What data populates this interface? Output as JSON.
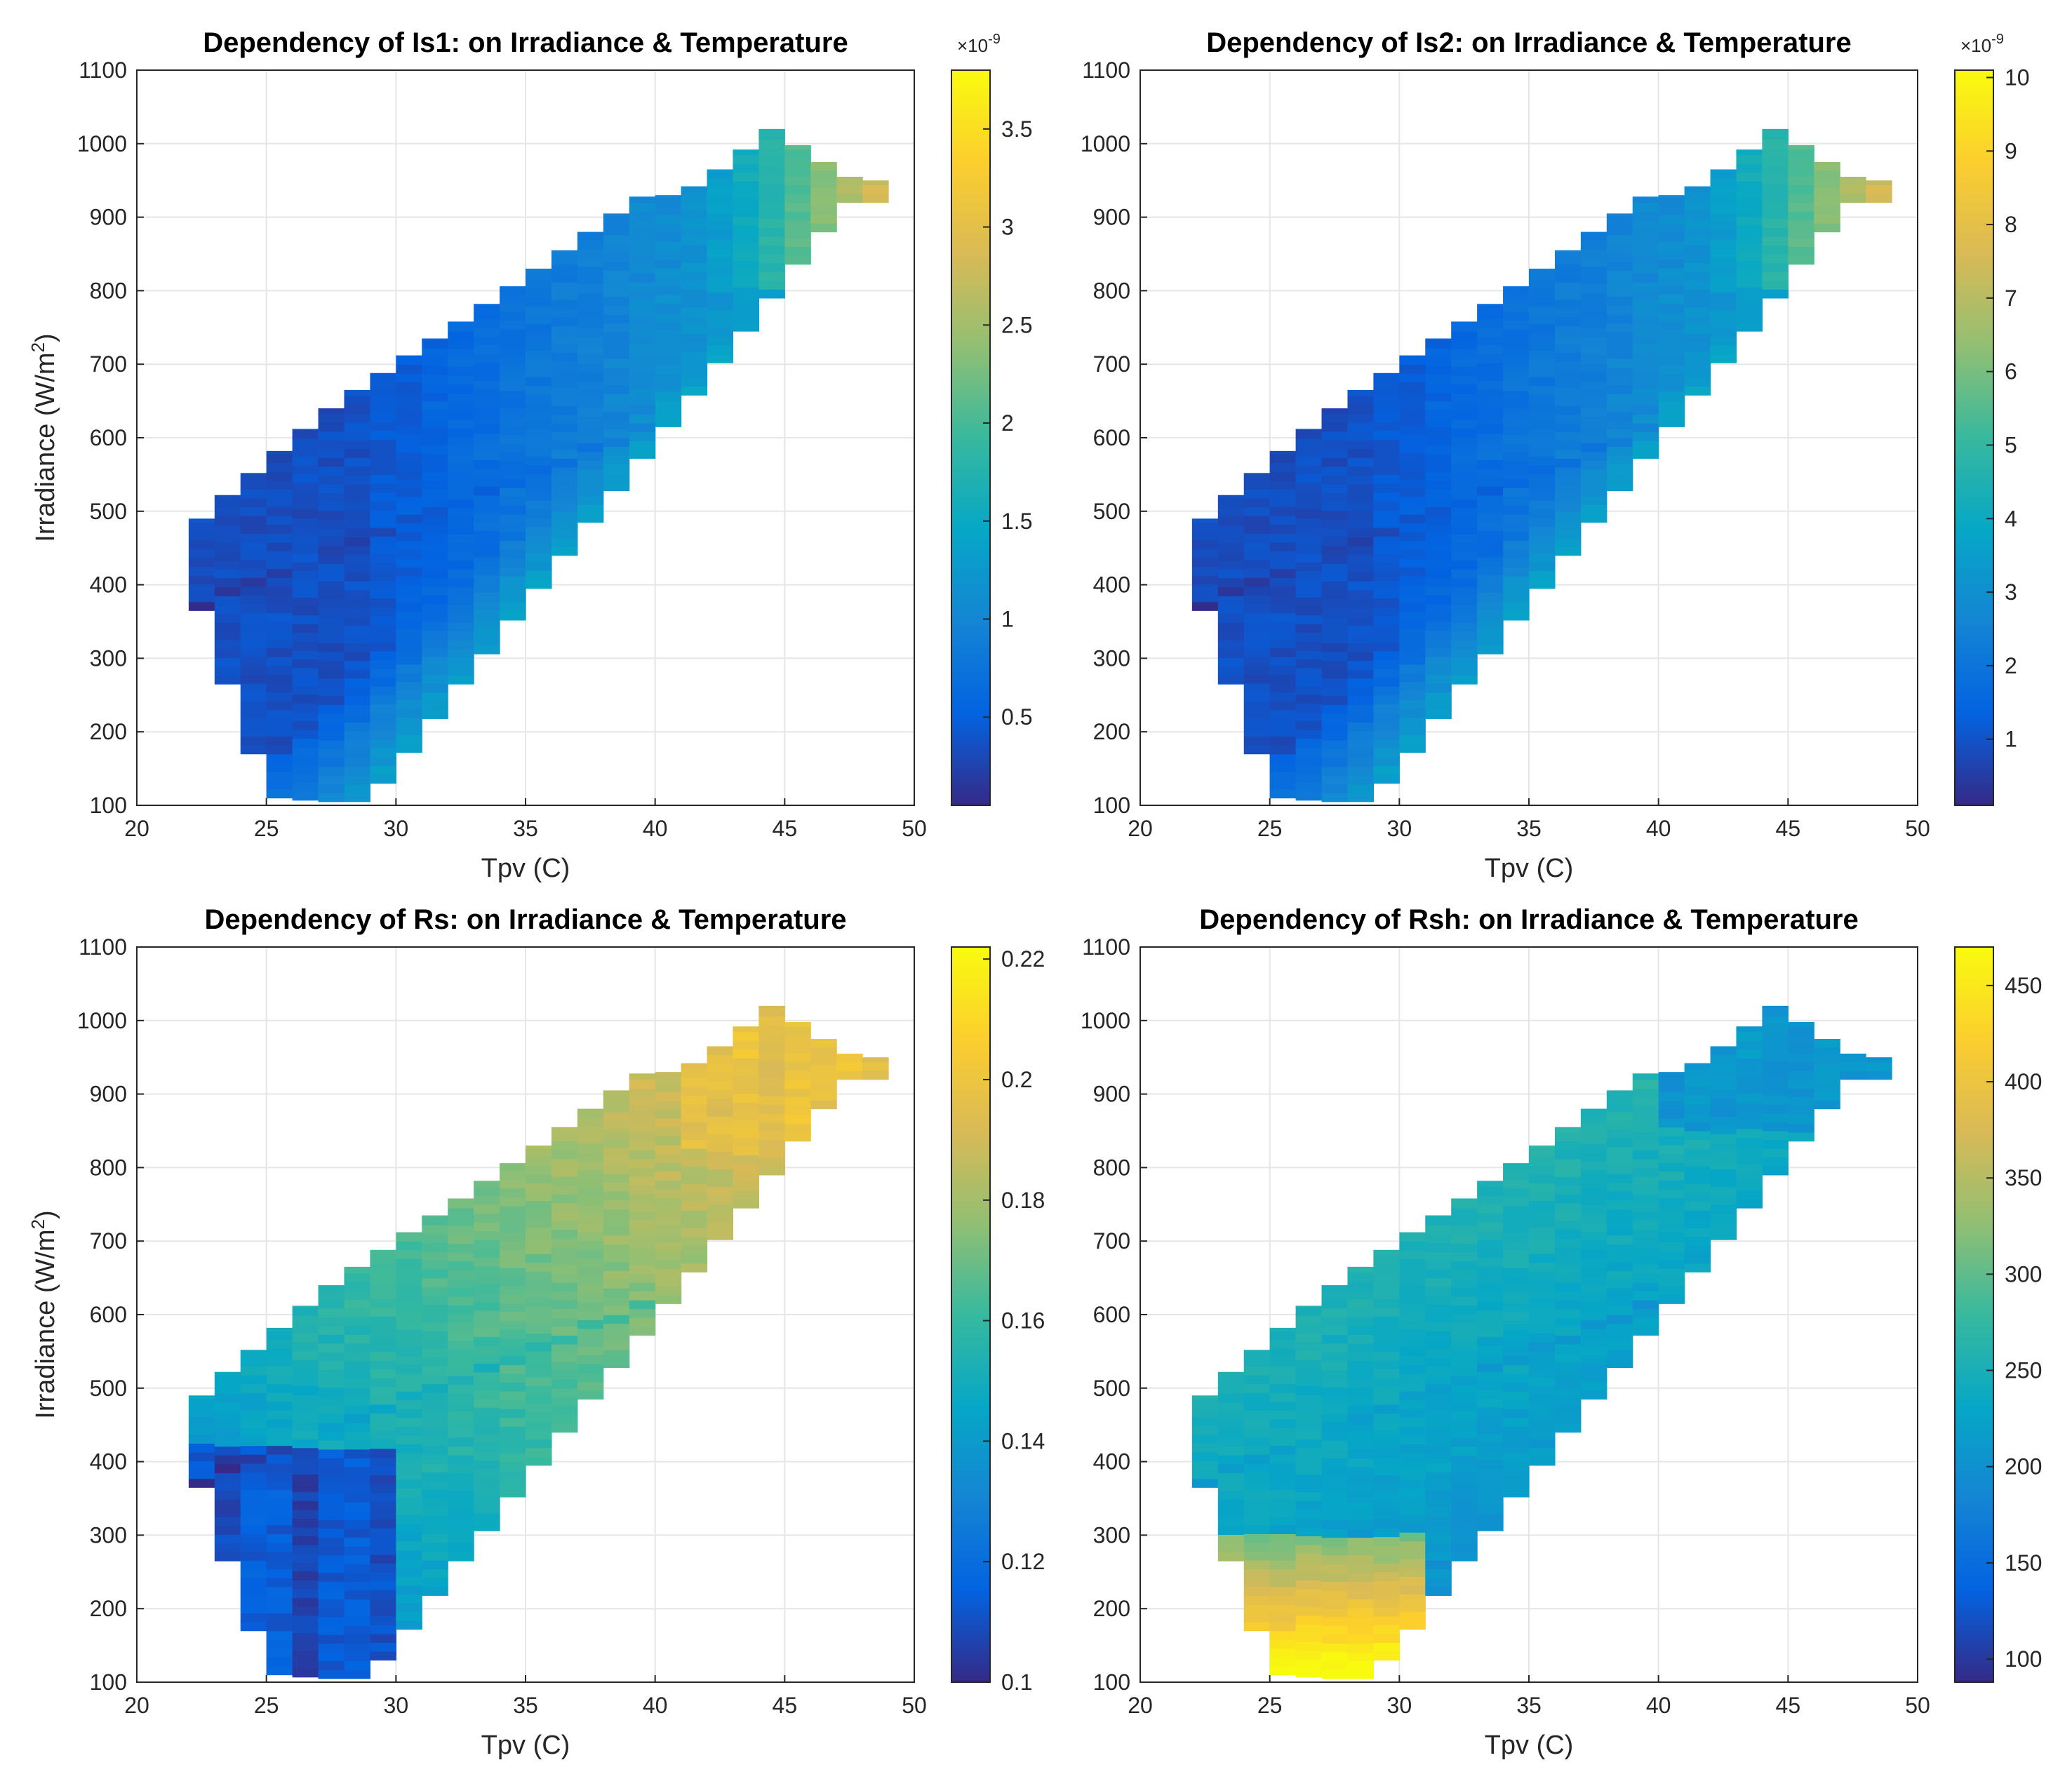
{
  "chart_data": [
    {
      "type": "heatmap",
      "title": "Dependency of Is1: on Irradiance & Temperature",
      "xlabel": "Tpv (C)",
      "ylabel": "Irradiance (W/m",
      "ylabel_sup": "2",
      "ylabel_end": ")",
      "xlim": [
        20,
        50
      ],
      "ylim": [
        100,
        1100
      ],
      "xticks": [
        "20",
        "25",
        "30",
        "35",
        "40",
        "45",
        "50"
      ],
      "yticks": [
        "100",
        "200",
        "300",
        "400",
        "500",
        "600",
        "700",
        "800",
        "900",
        "1000",
        "1100"
      ],
      "colorbar": {
        "range": [
          0.05,
          3.8
        ],
        "ticks": [
          0.5,
          1,
          1.5,
          2,
          2.5,
          3,
          3.5
        ],
        "tick_labels": [
          "0.5",
          "1",
          "1.5",
          "2",
          "2.5",
          "3",
          "3.5"
        ],
        "multiplier": "×10",
        "multiplier_exp": "-9"
      },
      "pattern": "is"
    },
    {
      "type": "heatmap",
      "title": "Dependency of Is2: on Irradiance & Temperature",
      "xlabel": "Tpv (C)",
      "ylabel": "",
      "ylabel_sup": "",
      "ylabel_end": "",
      "xlim": [
        20,
        50
      ],
      "ylim": [
        100,
        1100
      ],
      "xticks": [
        "20",
        "25",
        "30",
        "35",
        "40",
        "45",
        "50"
      ],
      "yticks": [
        "100",
        "200",
        "300",
        "400",
        "500",
        "600",
        "700",
        "800",
        "900",
        "1000",
        "1100"
      ],
      "colorbar": {
        "range": [
          0.1,
          10.1
        ],
        "ticks": [
          1,
          2,
          3,
          4,
          5,
          6,
          7,
          8,
          9,
          10
        ],
        "tick_labels": [
          "1",
          "2",
          "3",
          "4",
          "5",
          "6",
          "7",
          "8",
          "9",
          "10"
        ],
        "multiplier": "×10",
        "multiplier_exp": "-9"
      },
      "pattern": "is"
    },
    {
      "type": "heatmap",
      "title": "Dependency of Rs: on Irradiance & Temperature",
      "xlabel": "Tpv (C)",
      "ylabel": "Irradiance (W/m",
      "ylabel_sup": "2",
      "ylabel_end": ")",
      "xlim": [
        20,
        50
      ],
      "ylim": [
        100,
        1100
      ],
      "xticks": [
        "20",
        "25",
        "30",
        "35",
        "40",
        "45",
        "50"
      ],
      "yticks": [
        "100",
        "200",
        "300",
        "400",
        "500",
        "600",
        "700",
        "800",
        "900",
        "1000",
        "1100"
      ],
      "colorbar": {
        "range": [
          0.1,
          0.222
        ],
        "ticks": [
          0.1,
          0.12,
          0.14,
          0.16,
          0.18,
          0.2,
          0.22
        ],
        "tick_labels": [
          "0.1",
          "0.12",
          "0.14",
          "0.16",
          "0.18",
          "0.2",
          "0.22"
        ],
        "multiplier": "",
        "multiplier_exp": ""
      },
      "pattern": "rs"
    },
    {
      "type": "heatmap",
      "title": "Dependency of Rsh: on Irradiance & Temperature",
      "xlabel": "Tpv (C)",
      "ylabel": "",
      "ylabel_sup": "",
      "ylabel_end": "",
      "xlim": [
        20,
        50
      ],
      "ylim": [
        100,
        1100
      ],
      "xticks": [
        "20",
        "25",
        "30",
        "35",
        "40",
        "45",
        "50"
      ],
      "yticks": [
        "100",
        "200",
        "300",
        "400",
        "500",
        "600",
        "700",
        "800",
        "900",
        "1000",
        "1100"
      ],
      "colorbar": {
        "range": [
          88,
          470
        ],
        "ticks": [
          100,
          150,
          200,
          250,
          300,
          350,
          400,
          450
        ],
        "tick_labels": [
          "100",
          "150",
          "200",
          "250",
          "300",
          "350",
          "400",
          "450"
        ],
        "multiplier": "",
        "multiplier_exp": ""
      },
      "pattern": "rsh"
    }
  ],
  "envelope": {
    "note": "Approximate irradiance band [min, max] covered by data for each temperature column (1 C wide)",
    "columns": [
      [
        22.5,
        365,
        490
      ],
      [
        23.5,
        265,
        522
      ],
      [
        24.5,
        170,
        552
      ],
      [
        25.5,
        110,
        582
      ],
      [
        26.5,
        107,
        612
      ],
      [
        27.5,
        105,
        640
      ],
      [
        28.5,
        105,
        665
      ],
      [
        29.5,
        130,
        688
      ],
      [
        30.5,
        172,
        712
      ],
      [
        31.5,
        218,
        735
      ],
      [
        32.5,
        265,
        758
      ],
      [
        33.5,
        306,
        782
      ],
      [
        34.5,
        352,
        806
      ],
      [
        35.5,
        395,
        830
      ],
      [
        36.5,
        440,
        855
      ],
      [
        37.5,
        485,
        880
      ],
      [
        38.5,
        528,
        905
      ],
      [
        39.5,
        572,
        928
      ],
      [
        40.5,
        615,
        930
      ],
      [
        41.5,
        658,
        942
      ],
      [
        42.5,
        702,
        965
      ],
      [
        43.5,
        745,
        992
      ],
      [
        44.5,
        790,
        1020
      ],
      [
        45.5,
        836,
        998
      ],
      [
        46.5,
        880,
        975
      ],
      [
        47.5,
        920,
        955
      ],
      [
        48.5,
        920,
        950
      ]
    ]
  },
  "parula": [
    "#352a87",
    "#0363e1",
    "#1485d4",
    "#06a7c6",
    "#38b99e",
    "#92bf73",
    "#d9ba56",
    "#fcce2e",
    "#f9fb0e"
  ]
}
